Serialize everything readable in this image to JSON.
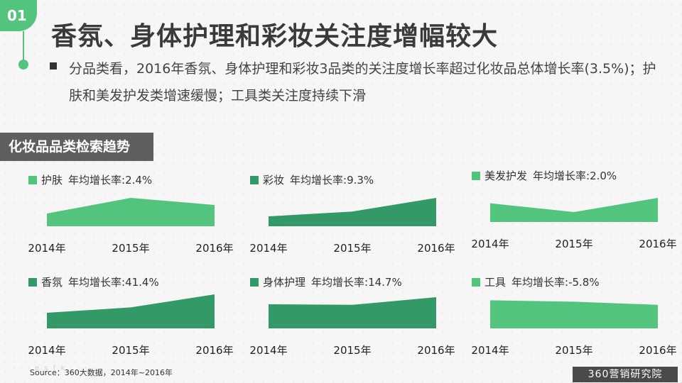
{
  "header": {
    "badge": "01",
    "title": "香氛、身体护理和彩妆关注度增幅较大",
    "bullet": "分品类看，2016年香氛、身体护理和彩妆3品类的关注度增长率超过化妆品总体增长率(3.5%)；护肤和美发护发类增速缓慢；工具类关注度持续下滑"
  },
  "section_label": "化妆品品类检索趋势",
  "chart_data": [
    {
      "type": "area",
      "title": "护肤",
      "growth": "年均增长率:2.4%",
      "color": "#52c47e",
      "x": [
        "2014年",
        "2015年",
        "2016年"
      ],
      "values": [
        0.45,
        1.0,
        0.75
      ]
    },
    {
      "type": "area",
      "title": "彩妆",
      "growth": "年均增长率:9.3%",
      "color": "#339966",
      "x": [
        "2014年",
        "2015年",
        "2016年"
      ],
      "values": [
        0.35,
        0.52,
        1.0
      ]
    },
    {
      "type": "area",
      "title": "美发护发",
      "growth": "年均增长率:2.0%",
      "color": "#52c47e",
      "x": [
        "2014年",
        "2015年",
        "2016年"
      ],
      "values": [
        0.66,
        0.35,
        0.85
      ]
    },
    {
      "type": "area",
      "title": "香氛",
      "growth": "年均增长率:41.4%",
      "color": "#339966",
      "x": [
        "2014年",
        "2015年",
        "2016年"
      ],
      "values": [
        0.55,
        0.74,
        1.2
      ]
    },
    {
      "type": "area",
      "title": "身体护理",
      "growth": "年均增长率:14.7%",
      "color": "#339966",
      "x": [
        "2014年",
        "2015年",
        "2016年"
      ],
      "values": [
        0.85,
        0.83,
        1.1
      ]
    },
    {
      "type": "area",
      "title": "工具",
      "growth": "年均增长率:-5.8%",
      "color": "#52c47e",
      "x": [
        "2014年",
        "2015年",
        "2016年"
      ],
      "values": [
        0.99,
        0.94,
        0.83
      ]
    }
  ],
  "footer": {
    "source": "Source：360大数据，2014年~2016年",
    "watermark": "· · ·  e s f k  · · ·",
    "logo": "360营销研究院"
  }
}
